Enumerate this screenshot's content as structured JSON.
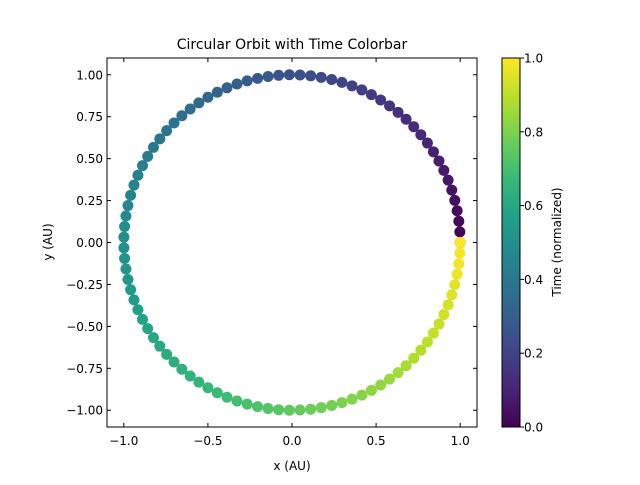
{
  "chart_data": {
    "type": "scatter",
    "title": "Circular Orbit with Time Colorbar",
    "xlabel": "x (AU)",
    "ylabel": "y (AU)",
    "xlim": [
      -1.1,
      1.1
    ],
    "ylim": [
      -1.1,
      1.1
    ],
    "xticks": [
      -1.0,
      -0.5,
      0.0,
      0.5,
      1.0
    ],
    "xtick_labels": [
      "−1.0",
      "−0.5",
      "0.0",
      "0.5",
      "1.0"
    ],
    "yticks": [
      -1.0,
      -0.75,
      -0.5,
      -0.25,
      0.0,
      0.25,
      0.5,
      0.75,
      1.0
    ],
    "ytick_labels": [
      "−1.00",
      "−0.75",
      "−0.50",
      "−0.25",
      "0.00",
      "0.25",
      "0.50",
      "0.75",
      "1.00"
    ],
    "grid": false,
    "orbit": {
      "radius": 1.0,
      "num_points": 100,
      "start_angle_deg": 0,
      "direction": "counterclockwise"
    },
    "colorbar": {
      "label": "Time (normalized)",
      "range": [
        0.0,
        1.0
      ],
      "ticks": [
        0.0,
        0.2,
        0.4,
        0.6,
        0.8,
        1.0
      ],
      "tick_labels": [
        "0.0",
        "0.2",
        "0.4",
        "0.6",
        "0.8",
        "1.0"
      ],
      "colormap": "viridis",
      "colormap_stops": [
        "#440154",
        "#482878",
        "#3e4a89",
        "#31688e",
        "#26828e",
        "#1f9e89",
        "#35b779",
        "#6ece58",
        "#b5de2b",
        "#fde725"
      ]
    }
  }
}
